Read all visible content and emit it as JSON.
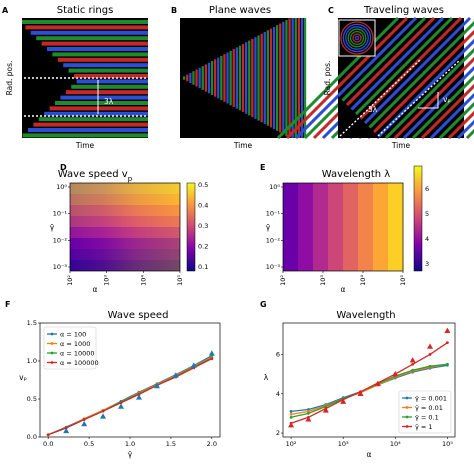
{
  "panels": {
    "A": {
      "letter": "A",
      "title": "Static rings",
      "xlabel": "Time",
      "ylabel": "Rad. pos.",
      "annotation": "3λ"
    },
    "B": {
      "letter": "B",
      "title": "Plane waves",
      "xlabel": "Time",
      "ylabel": ""
    },
    "C": {
      "letter": "C",
      "title": "Traveling waves",
      "xlabel": "Time",
      "ylabel": "Rad. pos.",
      "annotation_lambda": "3λ",
      "annotation_speed": "vₚ"
    },
    "D": {
      "letter": "D",
      "title": "Wave speed v",
      "title_sub": "p",
      "xlabel": "α",
      "ylabel": "γ̄",
      "xticks": [
        "10²",
        "10³",
        "10⁴",
        "10⁵"
      ],
      "yticks": [
        "10⁰",
        "10⁻¹",
        "10⁻²",
        "10⁻³"
      ],
      "cbar_ticks": [
        "0.1",
        "0.2",
        "0.3",
        "0.4",
        "0.5"
      ]
    },
    "E": {
      "letter": "E",
      "title": "Wavelength λ",
      "xlabel": "α",
      "ylabel": "γ̄",
      "xticks": [
        "10²",
        "10³",
        "10⁴",
        "10⁵"
      ],
      "yticks": [
        "10⁰",
        "10⁻¹",
        "10⁻²",
        "10⁻³"
      ],
      "cbar_ticks": [
        "3",
        "4",
        "5",
        "6"
      ]
    },
    "F": {
      "letter": "F",
      "title": "Wave speed",
      "xlabel": "γ̄",
      "ylabel": "vₚ",
      "xticks": [
        "0.0",
        "0.5",
        "1.0",
        "1.5",
        "2.0"
      ],
      "yticks": [
        "0.0",
        "0.5",
        "1.0",
        "1.5"
      ]
    },
    "G": {
      "letter": "G",
      "title": "Wavelength",
      "xlabel": "α",
      "ylabel": "λ",
      "xticks": [
        "10²",
        "10³",
        "10⁴",
        "10⁵"
      ],
      "yticks": [
        "2",
        "4",
        "6"
      ]
    }
  },
  "chart_data": [
    {
      "type": "heatmap",
      "title": "Wave speed vₚ",
      "xlabel": "α",
      "ylabel": "γ̄",
      "x_scale": "log",
      "y_scale": "log",
      "xlim": [
        100,
        100000
      ],
      "ylim": [
        0.001,
        1
      ],
      "colorbar_range": [
        0.05,
        0.57
      ],
      "note": ""
    },
    {
      "type": "heatmap",
      "title": "Wavelength λ",
      "xlabel": "α",
      "ylabel": "γ̄",
      "x_scale": "log",
      "y_scale": "log",
      "xlim": [
        100,
        100000
      ],
      "ylim": [
        0.001,
        1
      ],
      "colorbar_range": [
        2.6,
        6.5
      ]
    },
    {
      "type": "line",
      "title": "Wave speed",
      "xlabel": "γ̄",
      "ylabel": "vₚ",
      "xlim": [
        -0.1,
        2.1
      ],
      "ylim": [
        0,
        1.5
      ],
      "x": [
        0.0,
        0.22,
        0.44,
        0.67,
        0.89,
        1.11,
        1.33,
        1.56,
        1.78,
        2.0
      ],
      "series": [
        {
          "name": "α = 100",
          "color": "#1f77b4",
          "values": [
            0.03,
            0.13,
            0.24,
            0.35,
            0.47,
            0.59,
            0.7,
            0.82,
            0.94,
            1.07
          ]
        },
        {
          "name": "α = 1000",
          "color": "#ff7f0e",
          "values": [
            0.03,
            0.12,
            0.24,
            0.35,
            0.46,
            0.58,
            0.69,
            0.81,
            0.93,
            1.05
          ]
        },
        {
          "name": "α = 10000",
          "color": "#2ca02c",
          "values": [
            0.03,
            0.12,
            0.23,
            0.34,
            0.46,
            0.57,
            0.68,
            0.8,
            0.92,
            1.04
          ]
        },
        {
          "name": "α = 100000",
          "color": "#d62728",
          "values": [
            0.03,
            0.12,
            0.23,
            0.34,
            0.45,
            0.56,
            0.68,
            0.79,
            0.91,
            1.03
          ]
        }
      ],
      "markers": {
        "color": "#1f77b4",
        "x": [
          0.22,
          0.44,
          0.67,
          0.89,
          1.11,
          1.33,
          1.56,
          1.78,
          2.0
        ],
        "values": [
          0.08,
          0.17,
          0.27,
          0.4,
          0.52,
          0.67,
          0.81,
          0.94,
          1.1
        ]
      },
      "legend": "top-left"
    },
    {
      "type": "line",
      "title": "Wavelength",
      "xlabel": "α",
      "ylabel": "λ",
      "x_scale": "log",
      "xlim": [
        70,
        140000
      ],
      "ylim": [
        1.8,
        7.6
      ],
      "x": [
        100,
        215,
        464,
        1000,
        2154,
        4642,
        10000,
        21544,
        46416,
        100000
      ],
      "series": [
        {
          "name": "γ̄ = 0.001",
          "color": "#1f77b4",
          "values": [
            3.1,
            3.2,
            3.45,
            3.8,
            4.1,
            4.45,
            4.8,
            5.1,
            5.3,
            5.45
          ]
        },
        {
          "name": "γ̄ = 0.01",
          "color": "#ff7f0e",
          "values": [
            2.95,
            3.1,
            3.4,
            3.75,
            4.05,
            4.45,
            4.85,
            5.15,
            5.35,
            5.5
          ]
        },
        {
          "name": "γ̄ = 0.1",
          "color": "#2ca02c",
          "values": [
            2.8,
            3.0,
            3.35,
            3.75,
            4.1,
            4.5,
            4.9,
            5.2,
            5.4,
            5.5
          ]
        },
        {
          "name": "γ̄ = 1",
          "color": "#d62728",
          "values": [
            2.5,
            2.8,
            3.25,
            3.7,
            4.1,
            4.55,
            5.0,
            5.5,
            6.0,
            6.6
          ]
        }
      ],
      "markers": {
        "color": "#d62728",
        "x": [
          100,
          215,
          464,
          1000,
          2154,
          4642,
          10000,
          21544,
          46416,
          100000
        ],
        "values": [
          2.4,
          2.7,
          3.15,
          3.6,
          4.0,
          4.5,
          5.0,
          5.7,
          6.4,
          7.2
        ]
      },
      "legend": "bottom-right"
    }
  ]
}
